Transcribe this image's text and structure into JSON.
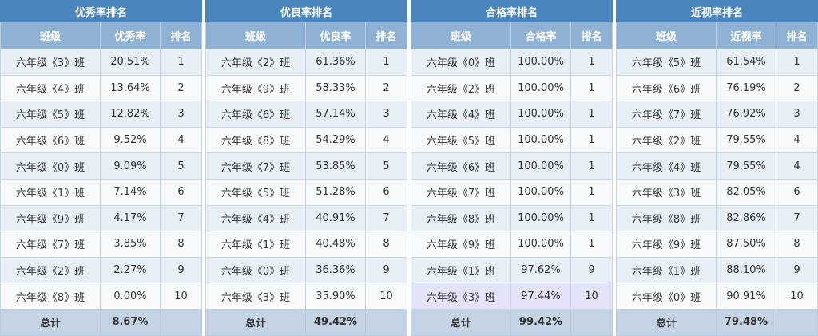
{
  "headers": {
    "class": "班级",
    "rank": "排名"
  },
  "total_label": "总计",
  "panels": [
    {
      "title": "优秀率排名",
      "metric": "优秀率",
      "total": "8.67%",
      "rows": [
        {
          "cls": "六年级《3》班",
          "val": "20.51%",
          "rank": "1"
        },
        {
          "cls": "六年级《4》班",
          "val": "13.64%",
          "rank": "2"
        },
        {
          "cls": "六年级《5》班",
          "val": "12.82%",
          "rank": "3"
        },
        {
          "cls": "六年级《6》班",
          "val": "9.52%",
          "rank": "4"
        },
        {
          "cls": "六年级《0》班",
          "val": "9.09%",
          "rank": "5"
        },
        {
          "cls": "六年级《1》班",
          "val": "7.14%",
          "rank": "6"
        },
        {
          "cls": "六年级《9》班",
          "val": "4.17%",
          "rank": "7"
        },
        {
          "cls": "六年级《7》班",
          "val": "3.85%",
          "rank": "8"
        },
        {
          "cls": "六年级《2》班",
          "val": "2.27%",
          "rank": "9"
        },
        {
          "cls": "六年级《8》班",
          "val": "0.00%",
          "rank": "10"
        }
      ]
    },
    {
      "title": "优良率排名",
      "metric": "优良率",
      "total": "49.42%",
      "rows": [
        {
          "cls": "六年级《2》班",
          "val": "61.36%",
          "rank": "1"
        },
        {
          "cls": "六年级《9》班",
          "val": "58.33%",
          "rank": "2"
        },
        {
          "cls": "六年级《6》班",
          "val": "57.14%",
          "rank": "3"
        },
        {
          "cls": "六年级《8》班",
          "val": "54.29%",
          "rank": "4"
        },
        {
          "cls": "六年级《7》班",
          "val": "53.85%",
          "rank": "5"
        },
        {
          "cls": "六年级《5》班",
          "val": "51.28%",
          "rank": "6"
        },
        {
          "cls": "六年级《4》班",
          "val": "40.91%",
          "rank": "7"
        },
        {
          "cls": "六年级《1》班",
          "val": "40.48%",
          "rank": "8"
        },
        {
          "cls": "六年级《0》班",
          "val": "36.36%",
          "rank": "9"
        },
        {
          "cls": "六年级《3》班",
          "val": "35.90%",
          "rank": "10"
        }
      ]
    },
    {
      "title": "合格率排名",
      "metric": "合格率",
      "total": "99.42%",
      "rows": [
        {
          "cls": "六年级《0》班",
          "val": "100.00%",
          "rank": "1"
        },
        {
          "cls": "六年级《2》班",
          "val": "100.00%",
          "rank": "1"
        },
        {
          "cls": "六年级《4》班",
          "val": "100.00%",
          "rank": "1"
        },
        {
          "cls": "六年级《5》班",
          "val": "100.00%",
          "rank": "1"
        },
        {
          "cls": "六年级《6》班",
          "val": "100.00%",
          "rank": "1"
        },
        {
          "cls": "六年级《7》班",
          "val": "100.00%",
          "rank": "1"
        },
        {
          "cls": "六年级《8》班",
          "val": "100.00%",
          "rank": "1"
        },
        {
          "cls": "六年级《9》班",
          "val": "100.00%",
          "rank": "1"
        },
        {
          "cls": "六年级《1》班",
          "val": "97.62%",
          "rank": "9"
        },
        {
          "cls": "六年级《3》班",
          "val": "97.44%",
          "rank": "10",
          "highlight": true
        }
      ]
    },
    {
      "title": "近视率排名",
      "metric": "近视率",
      "total": "79.48%",
      "rows": [
        {
          "cls": "六年级《5》班",
          "val": "61.54%",
          "rank": "1"
        },
        {
          "cls": "六年级《6》班",
          "val": "76.19%",
          "rank": "2"
        },
        {
          "cls": "六年级《7》班",
          "val": "76.92%",
          "rank": "3"
        },
        {
          "cls": "六年级《2》班",
          "val": "79.55%",
          "rank": "4"
        },
        {
          "cls": "六年级《4》班",
          "val": "79.55%",
          "rank": "4"
        },
        {
          "cls": "六年级《3》班",
          "val": "82.05%",
          "rank": "6"
        },
        {
          "cls": "六年级《8》班",
          "val": "82.86%",
          "rank": "7"
        },
        {
          "cls": "六年级《9》班",
          "val": "87.50%",
          "rank": "8"
        },
        {
          "cls": "六年级《1》班",
          "val": "88.10%",
          "rank": "9"
        },
        {
          "cls": "六年级《0》班",
          "val": "90.91%",
          "rank": "10"
        }
      ]
    }
  ]
}
